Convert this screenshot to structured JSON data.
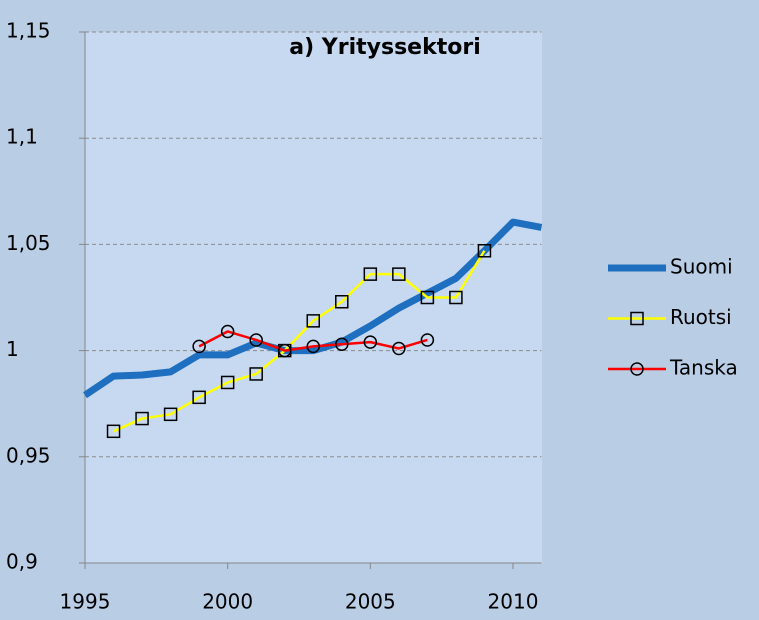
{
  "chart_data": {
    "type": "line",
    "title": "a) Yrityssektori",
    "x": [
      1995,
      1996,
      1997,
      1998,
      1999,
      2000,
      2001,
      2002,
      2003,
      2004,
      2005,
      2006,
      2007,
      2008,
      2009,
      2010,
      2011
    ],
    "series": [
      {
        "name": "Suomi",
        "color": "#1f6fc0",
        "marker": "none",
        "values": [
          0.979,
          0.988,
          0.9885,
          0.99,
          0.998,
          0.998,
          1.0036,
          1.0,
          1.0,
          1.004,
          1.0116,
          1.02,
          1.027,
          1.034,
          1.047,
          1.0605,
          1.058
        ]
      },
      {
        "name": "Ruotsi",
        "color": "#ffff00",
        "marker": "square",
        "values": [
          null,
          0.962,
          0.968,
          0.97,
          0.978,
          0.985,
          0.989,
          1.0,
          1.014,
          1.023,
          1.036,
          1.036,
          1.025,
          1.025,
          1.047,
          null,
          null
        ]
      },
      {
        "name": "Tanska",
        "color": "#ff0000",
        "marker": "circle",
        "values": [
          null,
          null,
          null,
          null,
          1.002,
          1.009,
          1.005,
          1.0,
          1.002,
          1.003,
          1.004,
          1.001,
          1.005,
          null,
          null,
          null,
          null
        ]
      }
    ],
    "xlim": [
      1995,
      2011
    ],
    "xticks": [
      1995,
      2000,
      2005,
      2010
    ],
    "ylim": [
      0.9,
      1.15
    ],
    "yticks": [
      {
        "value": 0.9,
        "label": "0,9"
      },
      {
        "value": 0.95,
        "label": "0,95"
      },
      {
        "value": 1,
        "label": "1"
      },
      {
        "value": 1.05,
        "label": "1,05"
      },
      {
        "value": 1.1,
        "label": "1,1"
      },
      {
        "value": 1.15,
        "label": "1,15"
      }
    ],
    "grid": true,
    "legend": "right"
  }
}
